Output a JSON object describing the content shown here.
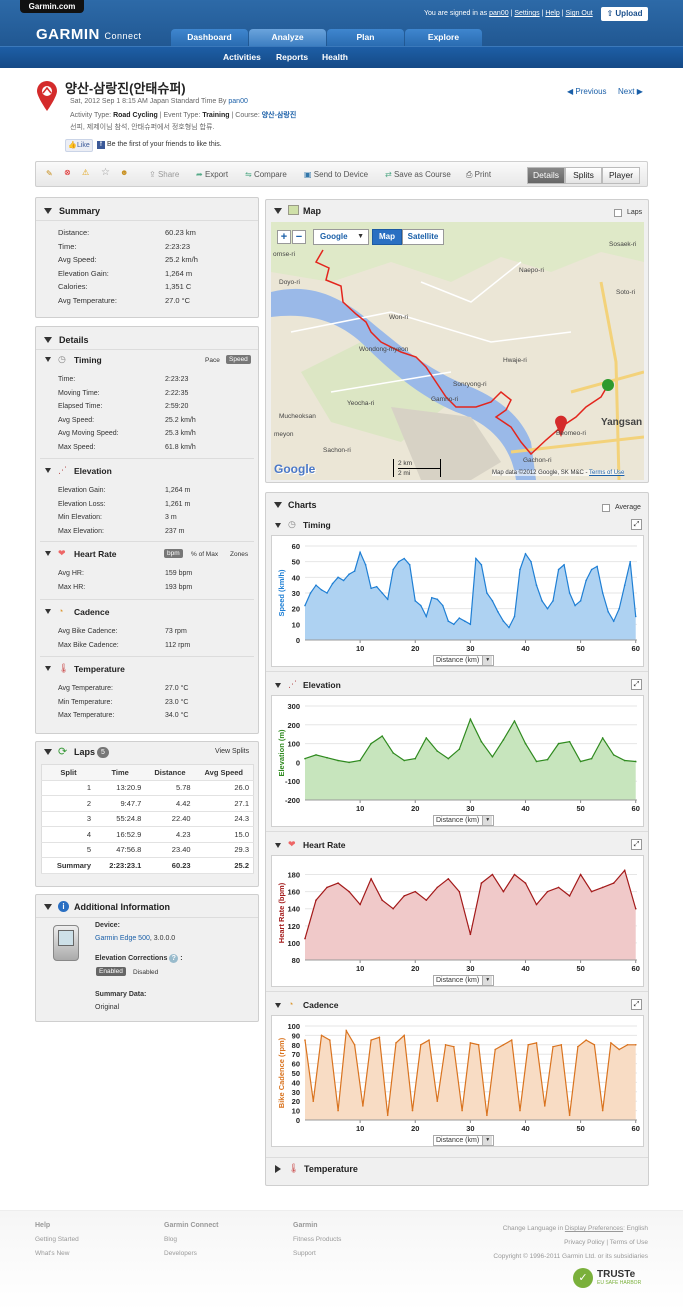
{
  "site": {
    "tab": "Garmin.com",
    "logo": "GARMIN",
    "logo_sub": "Connect",
    "signed_in": "You are signed in as",
    "user": "pan00",
    "help_links": [
      "Settings",
      "Help",
      "Sign Out"
    ],
    "upload": "Upload"
  },
  "nav": {
    "tabs": [
      "Dashboard",
      "Analyze",
      "Plan",
      "Explore"
    ],
    "sub": [
      "Activities",
      "Reports",
      "Health"
    ]
  },
  "activity": {
    "title": "양산-삼랑진(안태슈퍼)",
    "date_line": "Sat, 2012 Sep 1 8:15 AM Japan Standard Time By",
    "by": "pan00",
    "type_label": "Activity Type:",
    "type": "Road Cycling",
    "event_label": "| Event Type:",
    "event": "Training",
    "course_label": "| Course:",
    "course": "양산-삼랑진",
    "desc": "선피, 제제이님 참석, 안태슈퍼에서 정호형님 합류.",
    "like": "Like",
    "like_text": "Be the first of your friends to like this.",
    "prev": "Previous",
    "next": "Next"
  },
  "toolbar": {
    "share": "Share",
    "export": "Export",
    "compare": "Compare",
    "send": "Send to Device",
    "save_course": "Save as Course",
    "print": "Print",
    "views": [
      "Details",
      "Splits",
      "Player"
    ]
  },
  "summary": {
    "title": "Summary",
    "rows": [
      [
        "Distance:",
        "60.23 km"
      ],
      [
        "Time:",
        "2:23:23"
      ],
      [
        "Avg Speed:",
        "25.2 km/h"
      ],
      [
        "Elevation Gain:",
        "1,264 m"
      ],
      [
        "Calories:",
        "1,351 C"
      ],
      [
        "Avg Temperature:",
        "27.0 °C"
      ]
    ]
  },
  "details": {
    "title": "Details",
    "timing": {
      "title": "Timing",
      "toggles": [
        "Pace",
        "Speed"
      ],
      "rows": [
        [
          "Time:",
          "2:23:23"
        ],
        [
          "Moving Time:",
          "2:22:35"
        ],
        [
          "Elapsed Time:",
          "2:59:20"
        ],
        [
          "Avg Speed:",
          "25.2 km/h"
        ],
        [
          "Avg Moving Speed:",
          "25.3 km/h"
        ],
        [
          "Max Speed:",
          "61.8 km/h"
        ]
      ]
    },
    "elevation": {
      "title": "Elevation",
      "rows": [
        [
          "Elevation Gain:",
          "1,264 m"
        ],
        [
          "Elevation Loss:",
          "1,261 m"
        ],
        [
          "Min Elevation:",
          "3 m"
        ],
        [
          "Max Elevation:",
          "237 m"
        ]
      ]
    },
    "heart": {
      "title": "Heart Rate",
      "toggles": [
        "bpm",
        "% of Max",
        "Zones"
      ],
      "rows": [
        [
          "Avg HR:",
          "159 bpm"
        ],
        [
          "Max HR:",
          "193 bpm"
        ]
      ]
    },
    "cadence": {
      "title": "Cadence",
      "rows": [
        [
          "Avg Bike Cadence:",
          "73 rpm"
        ],
        [
          "Max Bike Cadence:",
          "112 rpm"
        ]
      ]
    },
    "temperature": {
      "title": "Temperature",
      "rows": [
        [
          "Avg Temperature:",
          "27.0 °C"
        ],
        [
          "Min Temperature:",
          "23.0 °C"
        ],
        [
          "Max Temperature:",
          "34.0 °C"
        ]
      ]
    }
  },
  "laps": {
    "title": "Laps",
    "count": "5",
    "view_splits": "View Splits",
    "headers": [
      "Split",
      "Time",
      "Distance",
      "Avg Speed"
    ],
    "rows": [
      [
        "1",
        "13:20.9",
        "5.78",
        "26.0"
      ],
      [
        "2",
        "9:47.7",
        "4.42",
        "27.1"
      ],
      [
        "3",
        "55:24.8",
        "22.40",
        "24.3"
      ],
      [
        "4",
        "16:52.9",
        "4.23",
        "15.0"
      ],
      [
        "5",
        "47:56.8",
        "23.40",
        "29.3"
      ],
      [
        "Summary",
        "2:23:23.1",
        "60.23",
        "25.2"
      ]
    ]
  },
  "info": {
    "title": "Additional Information",
    "device_label": "Device:",
    "device": "Garmin Edge 500",
    "version": ", 3.0.0.0",
    "elev_label": "Elevation Corrections",
    "enabled": "Enabled",
    "disabled": "Disabled",
    "summary_label": "Summary Data:",
    "summary_value": "Original"
  },
  "map": {
    "title": "Map",
    "laps": "Laps",
    "provider": "Google",
    "types": [
      "Map",
      "Satellite"
    ],
    "places": [
      "Sosaek-ri",
      "Naepo-ri",
      "Soto-ri",
      "Doyo-ri",
      "Won-ri",
      "Wondong-myeon",
      "Hwaje-ri",
      "Sonryong-ri",
      "Yeocha-ri",
      "Gamno-ri",
      "Mucheoksan",
      "Sachon-ri",
      "Beomeo-ri",
      "Yangsan",
      "Gachon-ri",
      "meyon",
      "ornse-ri"
    ],
    "scale": [
      "2 km",
      "2 mi"
    ],
    "copyright": "Map data ©2012 Google, SK M&C -",
    "terms": "Terms of Use",
    "brand": "Google"
  },
  "charts": {
    "title": "Charts",
    "average": "Average",
    "xlabel": "Distance (km)",
    "timing": {
      "title": "Timing",
      "ylabel": "Speed (km/h)"
    },
    "elevation": {
      "title": "Elevation",
      "ylabel": "Elevation (m)"
    },
    "heart": {
      "title": "Heart Rate",
      "ylabel": "Heart Rate (bpm)"
    },
    "cadence": {
      "title": "Cadence",
      "ylabel": "Bike Cadence (rpm)"
    },
    "temperature": {
      "title": "Temperature"
    }
  },
  "chart_data": [
    {
      "type": "area",
      "ylabel": "Speed (km/h)",
      "xlabel": "Distance (km)",
      "color": "#1f7fd4",
      "fill": "#aed2f2",
      "ylim": [
        0,
        60
      ],
      "yticks": [
        0,
        10,
        20,
        30,
        40,
        50,
        60
      ],
      "xticks": [
        10,
        20,
        30,
        40,
        50,
        60
      ],
      "xlim": [
        0,
        60.23
      ],
      "x": [
        0,
        1,
        2,
        3,
        4,
        5,
        6,
        7,
        8,
        9,
        10,
        11,
        12,
        13,
        14,
        15,
        16,
        17,
        18,
        19,
        20,
        21,
        22,
        23,
        24,
        25,
        26,
        27,
        28,
        29,
        30,
        31,
        32,
        33,
        34,
        35,
        36,
        37,
        38,
        39,
        40,
        41,
        42,
        43,
        44,
        45,
        46,
        47,
        48,
        49,
        50,
        51,
        52,
        53,
        54,
        55,
        56,
        57,
        58,
        59,
        60
      ],
      "y": [
        22,
        30,
        35,
        32,
        30,
        36,
        40,
        38,
        42,
        44,
        56,
        48,
        33,
        34,
        30,
        26,
        45,
        50,
        52,
        48,
        25,
        22,
        15,
        27,
        26,
        22,
        12,
        10,
        14,
        12,
        10,
        52,
        48,
        30,
        25,
        18,
        12,
        8,
        15,
        45,
        55,
        50,
        35,
        25,
        20,
        25,
        45,
        48,
        30,
        22,
        25,
        38,
        45,
        47,
        30,
        18,
        12,
        20,
        35,
        50,
        15
      ]
    },
    {
      "type": "area",
      "ylabel": "Elevation (m)",
      "xlabel": "Distance (km)",
      "color": "#2f8a1f",
      "fill": "#c7e5bd",
      "ylim": [
        -200,
        300
      ],
      "yticks": [
        -200,
        -100,
        0,
        100,
        200,
        300
      ],
      "xticks": [
        10,
        20,
        30,
        40,
        50,
        60
      ],
      "xlim": [
        0,
        60.23
      ],
      "x": [
        0,
        2,
        4,
        6,
        8,
        10,
        12,
        14,
        16,
        18,
        20,
        22,
        24,
        26,
        28,
        30,
        32,
        34,
        36,
        38,
        40,
        42,
        44,
        46,
        48,
        50,
        52,
        54,
        56,
        58,
        60
      ],
      "y": [
        20,
        40,
        25,
        10,
        0,
        10,
        100,
        140,
        50,
        10,
        20,
        130,
        60,
        20,
        70,
        230,
        110,
        30,
        120,
        220,
        100,
        5,
        15,
        100,
        110,
        5,
        20,
        130,
        40,
        10,
        5
      ]
    },
    {
      "type": "area",
      "ylabel": "Heart Rate (bpm)",
      "xlabel": "Distance (km)",
      "color": "#a31a1a",
      "fill": "#f0c9c9",
      "ylim": [
        80,
        190
      ],
      "yticks": [
        80,
        100,
        120,
        140,
        160,
        180
      ],
      "xticks": [
        10,
        20,
        30,
        40,
        50,
        60
      ],
      "xlim": [
        0,
        60.23
      ],
      "x": [
        0,
        2,
        4,
        6,
        8,
        10,
        12,
        14,
        16,
        18,
        20,
        22,
        24,
        26,
        28,
        30,
        32,
        34,
        36,
        38,
        40,
        42,
        44,
        46,
        48,
        50,
        52,
        54,
        56,
        58,
        60
      ],
      "y": [
        105,
        150,
        165,
        170,
        160,
        145,
        175,
        150,
        140,
        155,
        160,
        150,
        165,
        175,
        160,
        110,
        170,
        180,
        160,
        180,
        170,
        145,
        160,
        165,
        155,
        180,
        160,
        165,
        170,
        185,
        140
      ]
    },
    {
      "type": "area",
      "ylabel": "Bike Cadence (rpm)",
      "xlabel": "Distance (km)",
      "color": "#d9731f",
      "fill": "#f8dcc4",
      "ylim": [
        0,
        100
      ],
      "yticks": [
        0,
        10,
        20,
        30,
        40,
        50,
        60,
        70,
        80,
        90,
        100
      ],
      "xticks": [
        10,
        20,
        30,
        40,
        50,
        60
      ],
      "xlim": [
        0,
        60.23
      ],
      "x": [
        0,
        1.5,
        3,
        4.5,
        6,
        7.5,
        9,
        10.5,
        12,
        13.5,
        15,
        16.5,
        18,
        19.5,
        21,
        22.5,
        24,
        25.5,
        27,
        28.5,
        30,
        31.5,
        33,
        34.5,
        36,
        37.5,
        39,
        40.5,
        42,
        43.5,
        45,
        46.5,
        48,
        49.5,
        51,
        52.5,
        54,
        55.5,
        57,
        58.5,
        60
      ],
      "y": [
        85,
        20,
        90,
        85,
        10,
        95,
        80,
        15,
        85,
        88,
        5,
        82,
        90,
        10,
        80,
        85,
        20,
        80,
        78,
        10,
        82,
        80,
        5,
        75,
        80,
        85,
        10,
        80,
        82,
        15,
        78,
        80,
        5,
        78,
        85,
        80,
        10,
        82,
        75,
        80,
        80
      ]
    }
  ],
  "footer": {
    "cols": [
      {
        "title": "Help",
        "items": [
          "Getting Started",
          "What's New"
        ]
      },
      {
        "title": "Garmin Connect",
        "items": [
          "Blog",
          "Developers"
        ]
      },
      {
        "title": "Garmin",
        "items": [
          "Fitness Products",
          "Support"
        ]
      }
    ],
    "lang": "Change Language in",
    "lang_link": "Display Preferences",
    "lang_val": ": English",
    "privacy": "Privacy Policy | Terms of Use",
    "copyright": "Copyright © 1996-2011 Garmin Ltd. or its subsidiaries",
    "truste": "TRUSTe",
    "truste_sub": "EU SAFE HARBOR"
  }
}
